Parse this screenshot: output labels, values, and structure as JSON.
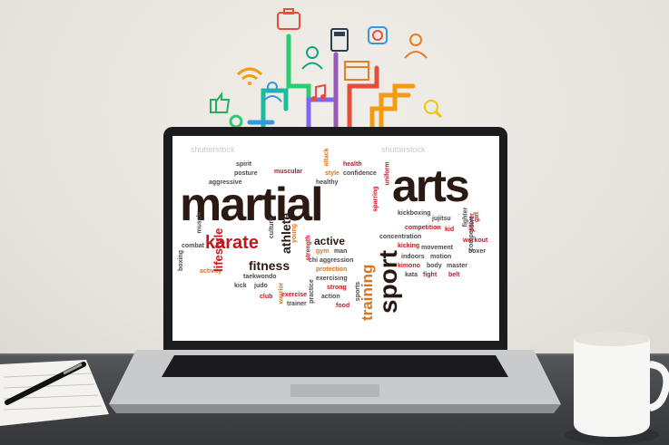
{
  "screen": {
    "watermark": "shutterstock",
    "words": {
      "martial": "martial",
      "arts": "arts",
      "karate": "karate",
      "sport": "sport",
      "training": "training",
      "fitness": "fitness",
      "athlete": "athlete",
      "lifestyle": "lifestyle",
      "active": "active",
      "spirit": "spirit",
      "posture": "posture",
      "aggressive": "aggressive",
      "muscular": "muscular",
      "attack": "attack",
      "health": "health",
      "style": "style",
      "confidence": "confidence",
      "healthy": "healthy",
      "uniform": "uniform",
      "kickboxing": "kickboxing",
      "jujitsu": "jujitsu",
      "fighter": "fighter",
      "girl": "girl",
      "power": "power",
      "competition": "competition",
      "kid": "kid",
      "workout": "workout",
      "concentration": "concentration",
      "kicking": "kicking",
      "movement": "movement",
      "boxer": "boxer",
      "indoors": "indoors",
      "motion": "motion",
      "kimono": "kimono",
      "body": "body",
      "master": "master",
      "kata": "kata",
      "fight": "fight",
      "belt": "belt",
      "combat": "combat",
      "boxing": "boxing",
      "activity": "activity",
      "taekwondo": "taekwondo",
      "kick": "kick",
      "judo": "judo",
      "club": "club",
      "warrior": "warrior",
      "exercise": "exercise",
      "trainer": "trainer",
      "practice": "practice",
      "action": "action",
      "strong": "strong",
      "exercising": "exercising",
      "protection": "protection",
      "aggression": "aggression",
      "strength": "strength",
      "young": "young",
      "gym": "gym",
      "man": "man",
      "chi": "chi",
      "food": "food",
      "sports": "sports",
      "sparring": "sparring",
      "culture": "culture",
      "muscle": "muscle",
      "competitive": "competitive"
    }
  },
  "colors": {
    "dark": "#2b1a14",
    "red": "#c5161c",
    "orange": "#d8731f"
  },
  "icons": [
    "briefcase-icon",
    "calculator-icon",
    "camera-icon",
    "person-icon",
    "person-icon",
    "wifi-icon",
    "browser-icon",
    "thumbs-up-icon",
    "music-note-icon",
    "search-icon",
    "gear-icon"
  ]
}
